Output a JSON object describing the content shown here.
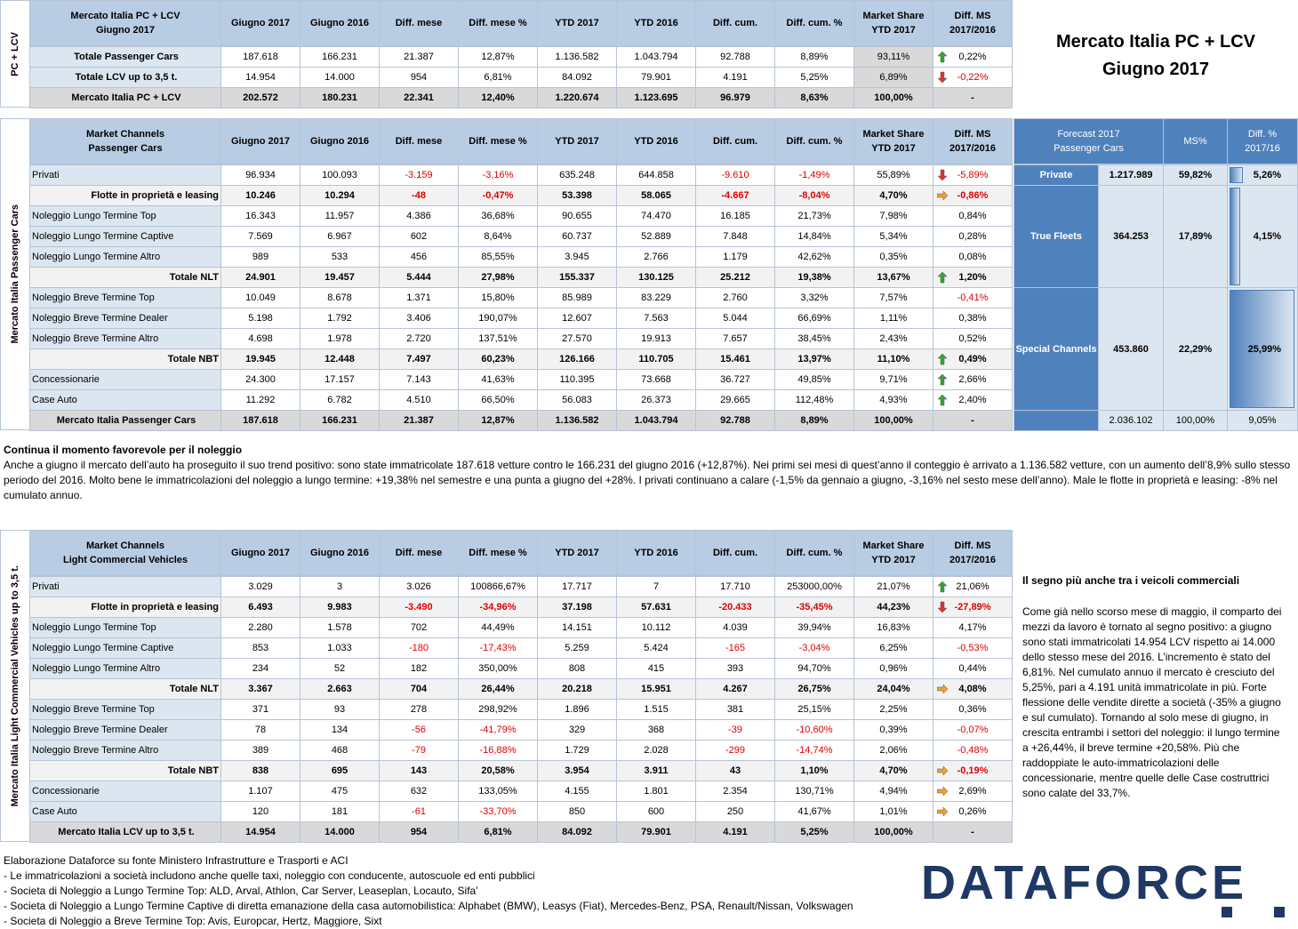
{
  "title": [
    "Mercato Italia PC + LCV",
    "Giugno 2017"
  ],
  "table1": {
    "side": "PC + LCV",
    "shaded_ms": true,
    "header": [
      [
        "Mercato Italia PC + LCV",
        "Giugno 2017"
      ],
      "Giugno 2017",
      "Giugno 2016",
      "Diff. mese",
      "Diff. mese %",
      "YTD 2017",
      "YTD 2016",
      "Diff. cum.",
      "Diff. cum. %",
      [
        "Market Share",
        "YTD 2017"
      ],
      [
        "Diff. MS",
        "2017/2016"
      ]
    ],
    "rows": [
      {
        "style": "head",
        "arrow": "up",
        "cells": [
          "Totale Passenger Cars",
          "187.618",
          "166.231",
          "21.387",
          "12,87%",
          "1.136.582",
          "1.043.794",
          "92.788",
          "8,89%",
          "93,11%",
          "0,22%"
        ]
      },
      {
        "style": "head",
        "arrow": "down",
        "cells": [
          "Totale LCV up to 3,5 t.",
          "14.954",
          "14.000",
          "954",
          "6,81%",
          "84.092",
          "79.901",
          "4.191",
          "5,25%",
          "6,89%",
          "-0,22%"
        ]
      },
      {
        "style": "grand",
        "cells": [
          "Mercato Italia PC + LCV",
          "202.572",
          "180.231",
          "22.341",
          "12,40%",
          "1.220.674",
          "1.123.695",
          "96.979",
          "8,63%",
          "100,00%",
          "-"
        ]
      }
    ]
  },
  "table2": {
    "side": "Mercato Italia Passenger Cars",
    "shaded_ms": false,
    "header": [
      [
        "Market Channels",
        "Passenger Cars"
      ],
      "Giugno 2017",
      "Giugno 2016",
      "Diff. mese",
      "Diff. mese %",
      "YTD 2017",
      "YTD 2016",
      "Diff. cum.",
      "Diff. cum. %",
      [
        "Market Share",
        "YTD 2017"
      ],
      [
        "Diff. MS",
        "2017/2016"
      ]
    ],
    "rows": [
      {
        "arrow": "down",
        "cells": [
          "Privati",
          "96.934",
          "100.093",
          "-3.159",
          "-3,16%",
          "635.248",
          "644.858",
          "-9.610",
          "-1,49%",
          "55,89%",
          "-5,89%"
        ]
      },
      {
        "style": "bold",
        "arrow": "right",
        "cells": [
          "Flotte in proprietà e leasing",
          "10.246",
          "10.294",
          "-48",
          "-0,47%",
          "53.398",
          "58.065",
          "-4.667",
          "-8,04%",
          "4,70%",
          "-0,86%"
        ]
      },
      {
        "cells": [
          "Noleggio Lungo Termine Top",
          "16.343",
          "11.957",
          "4.386",
          "36,68%",
          "90.655",
          "74.470",
          "16.185",
          "21,73%",
          "7,98%",
          "0,84%"
        ]
      },
      {
        "cells": [
          "Noleggio Lungo Termine Captive",
          "7.569",
          "6.967",
          "602",
          "8,64%",
          "60.737",
          "52.889",
          "7.848",
          "14,84%",
          "5,34%",
          "0,28%"
        ]
      },
      {
        "cells": [
          "Noleggio Lungo Termine Altro",
          "989",
          "533",
          "456",
          "85,55%",
          "3.945",
          "2.766",
          "1.179",
          "42,62%",
          "0,35%",
          "0,08%"
        ]
      },
      {
        "style": "bold",
        "arrow": "up",
        "cells": [
          "Totale NLT",
          "24.901",
          "19.457",
          "5.444",
          "27,98%",
          "155.337",
          "130.125",
          "25.212",
          "19,38%",
          "13,67%",
          "1,20%"
        ]
      },
      {
        "cells": [
          "Noleggio Breve Termine Top",
          "10.049",
          "8.678",
          "1.371",
          "15,80%",
          "85.989",
          "83.229",
          "2.760",
          "3,32%",
          "7,57%",
          "-0,41%"
        ]
      },
      {
        "cells": [
          "Noleggio Breve Termine Dealer",
          "5.198",
          "1.792",
          "3.406",
          "190,07%",
          "12.607",
          "7.563",
          "5.044",
          "66,69%",
          "1,11%",
          "0,38%"
        ]
      },
      {
        "cells": [
          "Noleggio Breve Termine Altro",
          "4.698",
          "1.978",
          "2.720",
          "137,51%",
          "27.570",
          "19.913",
          "7.657",
          "38,45%",
          "2,43%",
          "0,52%"
        ]
      },
      {
        "style": "bold",
        "arrow": "up",
        "cells": [
          "Totale NBT",
          "19.945",
          "12.448",
          "7.497",
          "60,23%",
          "126.166",
          "110.705",
          "15.461",
          "13,97%",
          "11,10%",
          "0,49%"
        ]
      },
      {
        "arrow": "up",
        "cells": [
          "Concessionarie",
          "24.300",
          "17.157",
          "7.143",
          "41,63%",
          "110.395",
          "73.668",
          "36.727",
          "49,85%",
          "9,71%",
          "2,66%"
        ]
      },
      {
        "arrow": "up",
        "cells": [
          "Case Auto",
          "11.292",
          "6.782",
          "4.510",
          "66,50%",
          "56.083",
          "26.373",
          "29.665",
          "112,48%",
          "4,93%",
          "2,40%"
        ]
      },
      {
        "style": "grand",
        "cells": [
          "Mercato Italia Passenger Cars",
          "187.618",
          "166.231",
          "21.387",
          "12,87%",
          "1.136.582",
          "1.043.794",
          "92.788",
          "8,89%",
          "100,00%",
          "-"
        ]
      }
    ]
  },
  "forecast": {
    "header": [
      [
        "Forecast 2017",
        "Passenger Cars"
      ],
      "MS%",
      [
        "Diff. %",
        "2017/16"
      ]
    ],
    "rows": [
      {
        "label": "Private",
        "value": "1.217.989",
        "ms": "59,82%",
        "diff": 5.26,
        "diff_label": "5,26%",
        "span": 1
      },
      {
        "label": "True Fleets",
        "value": "364.253",
        "ms": "17,89%",
        "diff": 4.15,
        "diff_label": "4,15%",
        "span": 5
      },
      {
        "label": "Special Channels",
        "value": "453.860",
        "ms": "22,29%",
        "diff": 25.99,
        "diff_label": "25,99%",
        "span": 6
      }
    ],
    "total": {
      "value": "2.036.102",
      "ms": "100,00%",
      "diff_label": "9,05%"
    }
  },
  "text1": {
    "title": "Continua il momento favorevole per il noleggio",
    "body": "Anche a giugno il mercato dell’auto ha proseguito il suo trend positivo: sono state immatricolate 187.618 vetture contro le 166.231 del giugno 2016 (+12,87%). Nei primi sei mesi di quest’anno il conteggio è arrivato a 1.136.582 vetture, con un aumento dell’8,9% sullo stesso periodo del 2016. Molto bene le immatricolazioni del noleggio a lungo termine:  +19,38% nel semestre e una punta a giugno del +28%. I privati continuano a calare (-1,5% da gennaio a giugno, -3,16% nel sesto mese dell’anno). Male le flotte in proprietà e leasing: -8% nel cumulato annuo."
  },
  "table3": {
    "side": "Mercato Italia Light Commercial Vehicles up to 3,5 t.",
    "shaded_ms": false,
    "header": [
      [
        "Market Channels",
        "Light Commercial Vehicles"
      ],
      "Giugno 2017",
      "Giugno 2016",
      "Diff. mese",
      "Diff. mese %",
      "YTD 2017",
      "YTD 2016",
      "Diff. cum.",
      "Diff. cum. %",
      [
        "Market Share",
        "YTD 2017"
      ],
      [
        "Diff. MS",
        "2017/2016"
      ]
    ],
    "rows": [
      {
        "arrow": "up",
        "cells": [
          "Privati",
          "3.029",
          "3",
          "3.026",
          "100866,67%",
          "17.717",
          "7",
          "17.710",
          "253000,00%",
          "21,07%",
          "21,06%"
        ]
      },
      {
        "style": "bold",
        "arrow": "down",
        "cells": [
          "Flotte in proprietà e leasing",
          "6.493",
          "9.983",
          "-3.490",
          "-34,96%",
          "37.198",
          "57.631",
          "-20.433",
          "-35,45%",
          "44,23%",
          "-27,89%"
        ]
      },
      {
        "cells": [
          "Noleggio Lungo Termine Top",
          "2.280",
          "1.578",
          "702",
          "44,49%",
          "14.151",
          "10.112",
          "4.039",
          "39,94%",
          "16,83%",
          "4,17%"
        ]
      },
      {
        "cells": [
          "Noleggio Lungo Termine Captive",
          "853",
          "1.033",
          "-180",
          "-17,43%",
          "5.259",
          "5.424",
          "-165",
          "-3,04%",
          "6,25%",
          "-0,53%"
        ]
      },
      {
        "cells": [
          "Noleggio Lungo Termine Altro",
          "234",
          "52",
          "182",
          "350,00%",
          "808",
          "415",
          "393",
          "94,70%",
          "0,96%",
          "0,44%"
        ]
      },
      {
        "style": "bold",
        "arrow": "right",
        "cells": [
          "Totale NLT",
          "3.367",
          "2.663",
          "704",
          "26,44%",
          "20.218",
          "15.951",
          "4.267",
          "26,75%",
          "24,04%",
          "4,08%"
        ]
      },
      {
        "cells": [
          "Noleggio Breve Termine Top",
          "371",
          "93",
          "278",
          "298,92%",
          "1.896",
          "1.515",
          "381",
          "25,15%",
          "2,25%",
          "0,36%"
        ]
      },
      {
        "cells": [
          "Noleggio Breve Termine Dealer",
          "78",
          "134",
          "-56",
          "-41,79%",
          "329",
          "368",
          "-39",
          "-10,60%",
          "0,39%",
          "-0,07%"
        ]
      },
      {
        "cells": [
          "Noleggio Breve Termine Altro",
          "389",
          "468",
          "-79",
          "-16,88%",
          "1.729",
          "2.028",
          "-299",
          "-14,74%",
          "2,06%",
          "-0,48%"
        ]
      },
      {
        "style": "bold",
        "arrow": "right",
        "cells": [
          "Totale NBT",
          "838",
          "695",
          "143",
          "20,58%",
          "3.954",
          "3.911",
          "43",
          "1,10%",
          "4,70%",
          "-0,19%"
        ]
      },
      {
        "arrow": "right",
        "cells": [
          "Concessionarie",
          "1.107",
          "475",
          "632",
          "133,05%",
          "4.155",
          "1.801",
          "2.354",
          "130,71%",
          "4,94%",
          "2,69%"
        ]
      },
      {
        "arrow": "right",
        "cells": [
          "Case Auto",
          "120",
          "181",
          "-61",
          "-33,70%",
          "850",
          "600",
          "250",
          "41,67%",
          "1,01%",
          "0,26%"
        ]
      },
      {
        "style": "grand",
        "cells": [
          "Mercato Italia LCV up to 3,5 t.",
          "14.954",
          "14.000",
          "954",
          "6,81%",
          "84.092",
          "79.901",
          "4.191",
          "5,25%",
          "100,00%",
          "-"
        ]
      }
    ]
  },
  "text2": {
    "title": "Il segno più anche tra i veicoli commerciali",
    "body": "Come già nello scorso mese di maggio, il comparto dei mezzi da lavoro è tornato al segno positivo: a giugno sono stati immatricolati 14.954 LCV rispetto ai 14.000 dello stesso mese del 2016. L’incremento è stato del 6,81%. Nel cumulato annuo il mercato è cresciuto del 5,25%, pari a 4.191 unità immatricolate in più. Forte flessione delle vendite dirette a società (-35% a giugno e sul cumulato). Tornando al solo mese di giugno, in crescita entrambi i settori del noleggio: il lungo termine a +26,44%, il breve termine +20,58%. Più che raddoppiate le auto-immatricolazioni delle concessionarie, mentre quelle delle Case costruttrici sono calate del 33,7%."
  },
  "footer": [
    "Elaborazione Dataforce su fonte Ministero Infrastrutture e Trasporti e ACI",
    "- Le immatricolazioni a società includono anche quelle taxi, noleggio con conducente, autoscuole ed enti pubblici",
    "- Societa di Noleggio a Lungo Termine Top: ALD, Arval, Athlon, Car Server, Leaseplan, Locauto, Sifa'",
    "- Societa di Noleggio a Lungo Termine Captive di diretta emanazione della casa automobilistica: Alphabet (BMW), Leasys (Fiat), Mercedes-Benz, PSA, Renault/Nissan, Volkswagen",
    "- Societa di Noleggio a Breve Termine Top: Avis, Europcar, Hertz, Maggiore, Sixt"
  ],
  "logo": "DATAFORCE"
}
